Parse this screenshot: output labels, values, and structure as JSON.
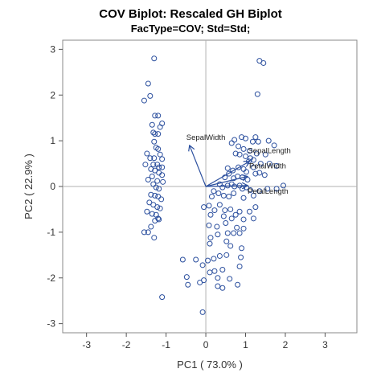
{
  "chart_data": {
    "type": "scatter",
    "title": "COV Biplot: Rescaled GH Biplot",
    "subtitle": "FacType=COV; Std=Std;",
    "xlabel": "PC1 ( 73.0% )",
    "ylabel": "PC2 ( 22.9% )",
    "xlim": [
      -3.6,
      3.8
    ],
    "ylim": [
      -3.2,
      3.2
    ],
    "xticks": [
      -3,
      -2,
      -1,
      0,
      1,
      2,
      3
    ],
    "yticks": [
      -3,
      -2,
      -1,
      0,
      1,
      2,
      3
    ],
    "reference_lines": [
      0
    ],
    "grid": false,
    "colors": {
      "points": "#2b4f9e",
      "vectors": "#2b4f9e",
      "reference": "#b0b0b0",
      "frame": "#888888"
    },
    "vectors": [
      {
        "label": "SepalWidth",
        "x": -0.41,
        "y": 0.9
      },
      {
        "label": "SepalLength",
        "x": 1.1,
        "y": 0.55
      },
      {
        "label": "PetalWidth",
        "x": 1.05,
        "y": 0.22
      },
      {
        "label": "PetalLength",
        "x": 1.05,
        "y": 0.02
      }
    ],
    "points": [
      [
        -1.3,
        2.8
      ],
      [
        -1.45,
        2.25
      ],
      [
        -1.55,
        1.88
      ],
      [
        -1.4,
        1.98
      ],
      [
        -1.28,
        1.55
      ],
      [
        -1.2,
        1.55
      ],
      [
        -1.35,
        1.35
      ],
      [
        -1.15,
        1.3
      ],
      [
        -1.32,
        1.18
      ],
      [
        -1.28,
        1.15
      ],
      [
        -1.2,
        1.15
      ],
      [
        -1.1,
        1.38
      ],
      [
        -1.3,
        0.98
      ],
      [
        -1.25,
        0.85
      ],
      [
        -1.2,
        0.82
      ],
      [
        -1.48,
        0.72
      ],
      [
        -1.4,
        0.62
      ],
      [
        -1.3,
        0.62
      ],
      [
        -1.15,
        0.7
      ],
      [
        -1.1,
        0.6
      ],
      [
        -1.32,
        0.48
      ],
      [
        -1.22,
        0.48
      ],
      [
        -1.18,
        0.42
      ],
      [
        -1.1,
        0.42
      ],
      [
        -1.52,
        0.48
      ],
      [
        -1.38,
        0.38
      ],
      [
        -1.28,
        0.35
      ],
      [
        -1.18,
        0.3
      ],
      [
        -1.1,
        0.25
      ],
      [
        -1.35,
        0.22
      ],
      [
        -1.45,
        0.15
      ],
      [
        -1.22,
        0.12
      ],
      [
        -1.08,
        0.1
      ],
      [
        -1.32,
        0.05
      ],
      [
        -1.25,
        -0.02
      ],
      [
        -1.18,
        -0.05
      ],
      [
        -1.38,
        -0.18
      ],
      [
        -1.28,
        -0.2
      ],
      [
        -1.2,
        -0.22
      ],
      [
        -1.12,
        -0.28
      ],
      [
        -1.42,
        -0.35
      ],
      [
        -1.32,
        -0.4
      ],
      [
        -1.22,
        -0.45
      ],
      [
        -1.15,
        -0.48
      ],
      [
        -1.48,
        -0.55
      ],
      [
        -1.35,
        -0.6
      ],
      [
        -1.25,
        -0.62
      ],
      [
        -1.18,
        -0.72
      ],
      [
        -1.28,
        -0.75
      ],
      [
        -1.2,
        -0.7
      ],
      [
        -1.38,
        -0.88
      ],
      [
        -1.45,
        -1.0
      ],
      [
        -1.55,
        -1.0
      ],
      [
        -1.3,
        -1.12
      ],
      [
        -1.1,
        -2.42
      ],
      [
        1.35,
        2.75
      ],
      [
        1.45,
        2.7
      ],
      [
        1.3,
        2.02
      ],
      [
        0.9,
        1.08
      ],
      [
        1.0,
        1.05
      ],
      [
        1.25,
        1.08
      ],
      [
        0.72,
        1.02
      ],
      [
        0.65,
        0.95
      ],
      [
        1.18,
        0.98
      ],
      [
        1.32,
        0.98
      ],
      [
        1.58,
        1.0
      ],
      [
        1.72,
        0.9
      ],
      [
        0.82,
        0.88
      ],
      [
        0.95,
        0.82
      ],
      [
        1.1,
        0.78
      ],
      [
        1.28,
        0.72
      ],
      [
        1.5,
        0.7
      ],
      [
        0.75,
        0.72
      ],
      [
        0.85,
        0.7
      ],
      [
        1.0,
        0.66
      ],
      [
        1.12,
        0.62
      ],
      [
        1.2,
        0.58
      ],
      [
        1.08,
        0.55
      ],
      [
        1.38,
        0.5
      ],
      [
        1.6,
        0.5
      ],
      [
        1.78,
        0.45
      ],
      [
        0.55,
        0.4
      ],
      [
        0.68,
        0.35
      ],
      [
        0.82,
        0.42
      ],
      [
        0.95,
        0.38
      ],
      [
        1.2,
        0.42
      ],
      [
        1.02,
        0.32
      ],
      [
        0.8,
        0.22
      ],
      [
        0.7,
        0.18
      ],
      [
        0.58,
        0.28
      ],
      [
        0.48,
        0.2
      ],
      [
        0.92,
        0.2
      ],
      [
        1.05,
        0.15
      ],
      [
        1.25,
        0.28
      ],
      [
        1.35,
        0.3
      ],
      [
        1.48,
        0.25
      ],
      [
        0.35,
        0.05
      ],
      [
        0.42,
        -0.02
      ],
      [
        0.55,
        0.02
      ],
      [
        0.65,
        0.05
      ],
      [
        0.72,
        0.0
      ],
      [
        0.85,
        0.02
      ],
      [
        0.92,
        -0.05
      ],
      [
        1.02,
        -0.02
      ],
      [
        1.12,
        -0.08
      ],
      [
        1.35,
        -0.1
      ],
      [
        1.55,
        -0.05
      ],
      [
        1.78,
        -0.05
      ],
      [
        1.95,
        0.02
      ],
      [
        0.2,
        -0.1
      ],
      [
        0.15,
        -0.22
      ],
      [
        0.32,
        -0.15
      ],
      [
        0.45,
        -0.2
      ],
      [
        0.58,
        -0.22
      ],
      [
        0.7,
        -0.15
      ],
      [
        0.95,
        -0.25
      ],
      [
        1.2,
        -0.2
      ],
      [
        -0.05,
        -0.45
      ],
      [
        0.08,
        -0.42
      ],
      [
        0.22,
        -0.52
      ],
      [
        0.35,
        -0.4
      ],
      [
        0.48,
        -0.52
      ],
      [
        0.62,
        -0.5
      ],
      [
        0.75,
        -0.62
      ],
      [
        0.85,
        -0.55
      ],
      [
        1.1,
        -0.55
      ],
      [
        1.25,
        -0.45
      ],
      [
        0.12,
        -0.62
      ],
      [
        0.45,
        -0.65
      ],
      [
        0.65,
        -0.7
      ],
      [
        0.95,
        -0.72
      ],
      [
        1.2,
        -0.7
      ],
      [
        0.08,
        -0.85
      ],
      [
        0.28,
        -0.88
      ],
      [
        0.5,
        -0.8
      ],
      [
        0.78,
        -0.9
      ],
      [
        0.95,
        -0.92
      ],
      [
        0.12,
        -1.12
      ],
      [
        0.3,
        -1.05
      ],
      [
        0.55,
        -1.02
      ],
      [
        0.7,
        -1.02
      ],
      [
        0.85,
        -1.02
      ],
      [
        0.1,
        -1.25
      ],
      [
        0.52,
        -1.2
      ],
      [
        0.62,
        -1.3
      ],
      [
        0.9,
        -1.35
      ],
      [
        0.05,
        -1.62
      ],
      [
        0.2,
        -1.58
      ],
      [
        0.35,
        -1.52
      ],
      [
        0.52,
        -1.5
      ],
      [
        0.88,
        -1.55
      ],
      [
        -0.08,
        -1.72
      ],
      [
        0.1,
        -1.88
      ],
      [
        0.22,
        -1.85
      ],
      [
        0.42,
        -1.82
      ],
      [
        0.85,
        -1.75
      ],
      [
        0.3,
        -2.0
      ],
      [
        0.6,
        -2.02
      ],
      [
        0.3,
        -2.18
      ],
      [
        0.42,
        -2.22
      ],
      [
        0.8,
        -2.15
      ],
      [
        -0.15,
        -2.1
      ],
      [
        -0.58,
        -1.6
      ],
      [
        -0.25,
        -1.6
      ],
      [
        -0.48,
        -1.98
      ],
      [
        -0.05,
        -2.05
      ],
      [
        -0.45,
        -2.15
      ],
      [
        -0.08,
        -2.75
      ]
    ]
  }
}
